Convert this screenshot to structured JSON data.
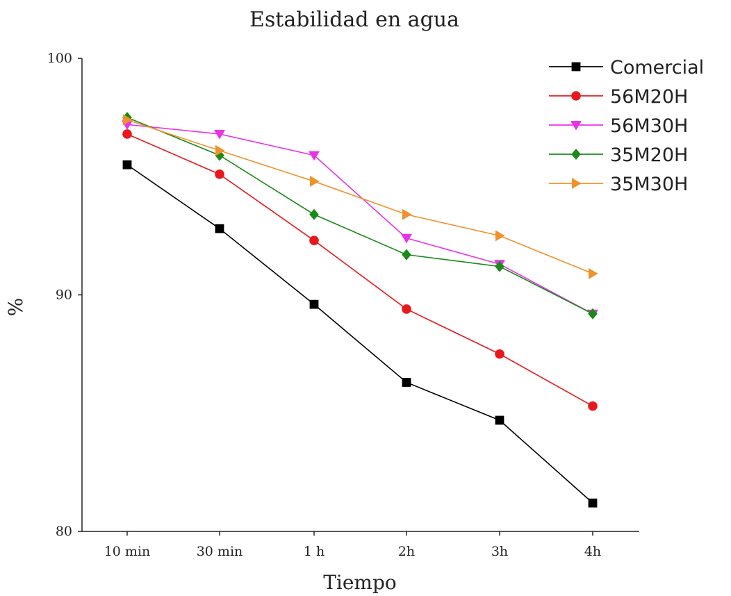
{
  "chart_data": {
    "type": "line",
    "title": "Estabilidad en agua",
    "xlabel": "Tiempo",
    "ylabel": "%",
    "categories": [
      "10 min",
      "30 min",
      "1 h",
      "2h",
      "3h",
      "4h"
    ],
    "ylim": [
      80,
      100
    ],
    "yticks": [
      "80",
      "90",
      "100"
    ],
    "legend_position": "top-right",
    "grid": false,
    "series": [
      {
        "name": "Comercial",
        "color": "#000000",
        "marker": "square",
        "values": [
          95.5,
          92.8,
          89.6,
          86.3,
          84.7,
          81.2
        ]
      },
      {
        "name": "56M20H",
        "color": "#e8191c",
        "marker": "circle",
        "values": [
          96.8,
          95.1,
          92.3,
          89.4,
          87.5,
          85.3
        ]
      },
      {
        "name": "56M30H",
        "color": "#e933e9",
        "marker": "triangle-down",
        "values": [
          97.2,
          96.8,
          95.9,
          92.4,
          91.3,
          89.2
        ]
      },
      {
        "name": "35M20H",
        "color": "#1a8a1a",
        "marker": "diamond",
        "values": [
          97.5,
          95.9,
          93.4,
          91.7,
          91.2,
          89.2
        ]
      },
      {
        "name": "35M30H",
        "color": "#f0922a",
        "marker": "triangle-right",
        "values": [
          97.4,
          96.1,
          94.8,
          93.4,
          92.5,
          90.9
        ]
      }
    ]
  }
}
